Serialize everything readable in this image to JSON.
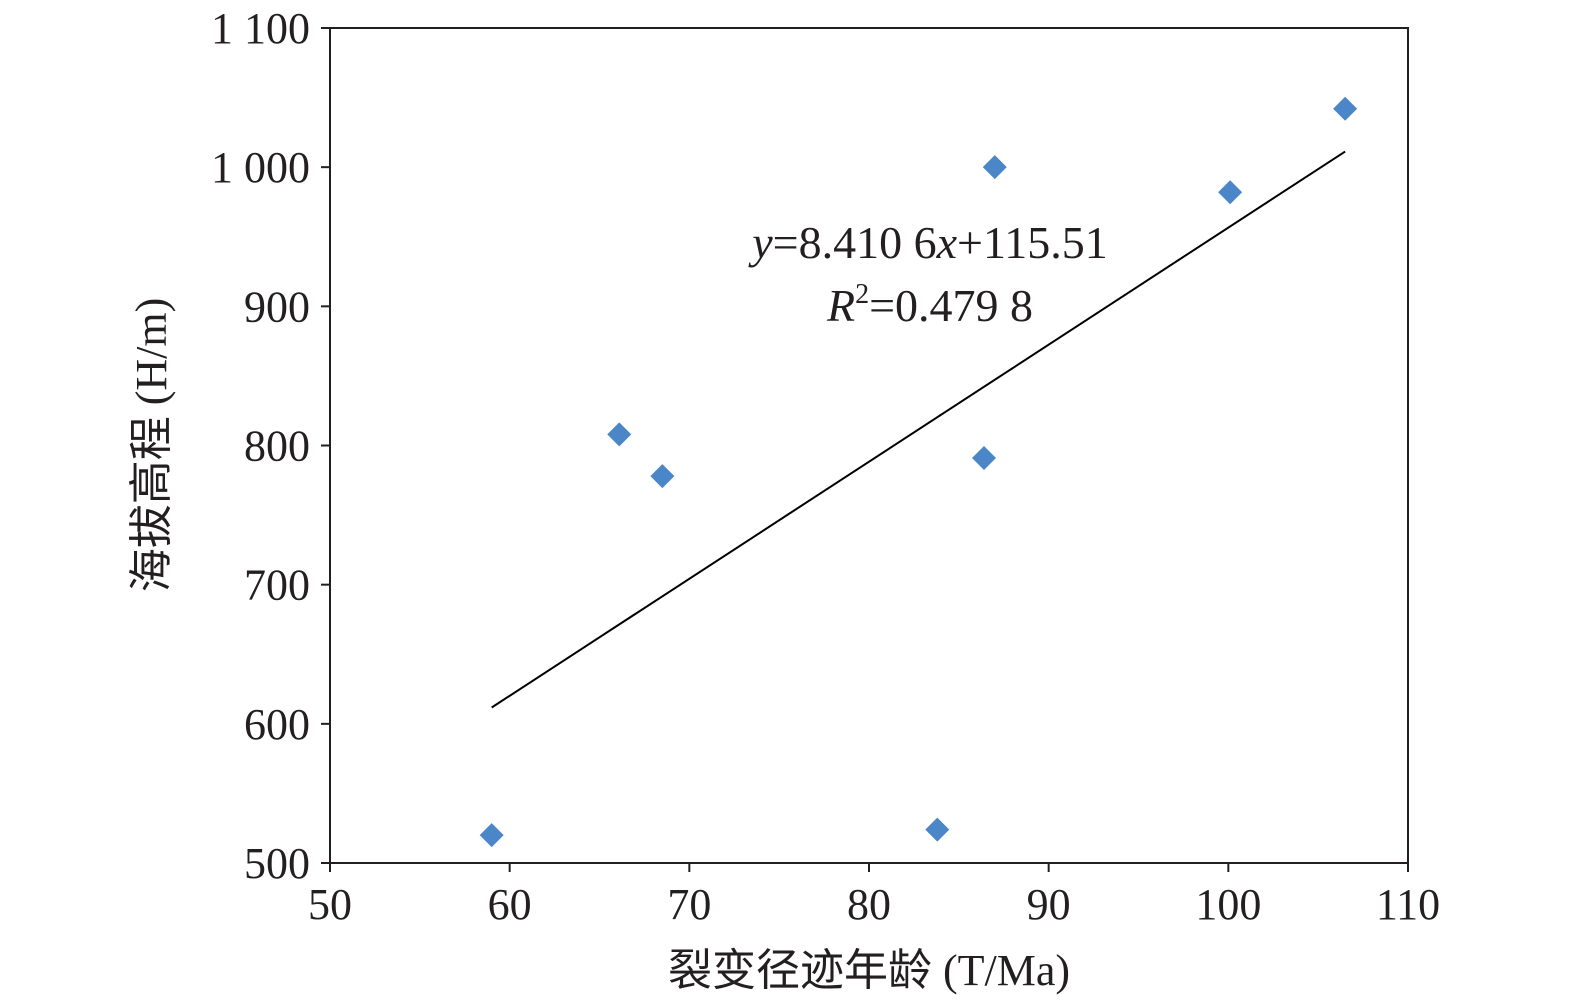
{
  "chart_data": {
    "type": "scatter",
    "xlabel": "裂变径迹年龄 (T/Ma)",
    "ylabel": "海拔高程 (H/m)",
    "xlim": [
      50,
      110
    ],
    "ylim": [
      500,
      1100
    ],
    "xticks": [
      50,
      60,
      70,
      80,
      90,
      100,
      110
    ],
    "yticks": [
      500,
      600,
      700,
      800,
      900,
      1000,
      1100
    ],
    "xtick_labels": [
      "50",
      "60",
      "70",
      "80",
      "90",
      "100",
      "110"
    ],
    "ytick_labels": [
      "500",
      "600",
      "700",
      "800",
      "900",
      "1 000",
      "1 100"
    ],
    "grid": false,
    "marker": "diamond",
    "marker_color": "#4a86c8",
    "points": [
      {
        "x": 59.0,
        "y": 520
      },
      {
        "x": 66.1,
        "y": 808
      },
      {
        "x": 68.5,
        "y": 778
      },
      {
        "x": 83.8,
        "y": 524
      },
      {
        "x": 86.4,
        "y": 791
      },
      {
        "x": 87.0,
        "y": 1000
      },
      {
        "x": 100.1,
        "y": 982
      },
      {
        "x": 106.5,
        "y": 1042
      }
    ],
    "trendline": {
      "type": "linear",
      "slope": 8.4106,
      "intercept": 115.51,
      "x_range": [
        59.0,
        106.5
      ],
      "equation": {
        "var_y": "y",
        "eq_text": "=8.410 6",
        "var_x": "x",
        "tail": "+115.51"
      },
      "r_squared": {
        "var": "R",
        "sup": "2",
        "eq_text": "=0.479 8"
      }
    }
  }
}
